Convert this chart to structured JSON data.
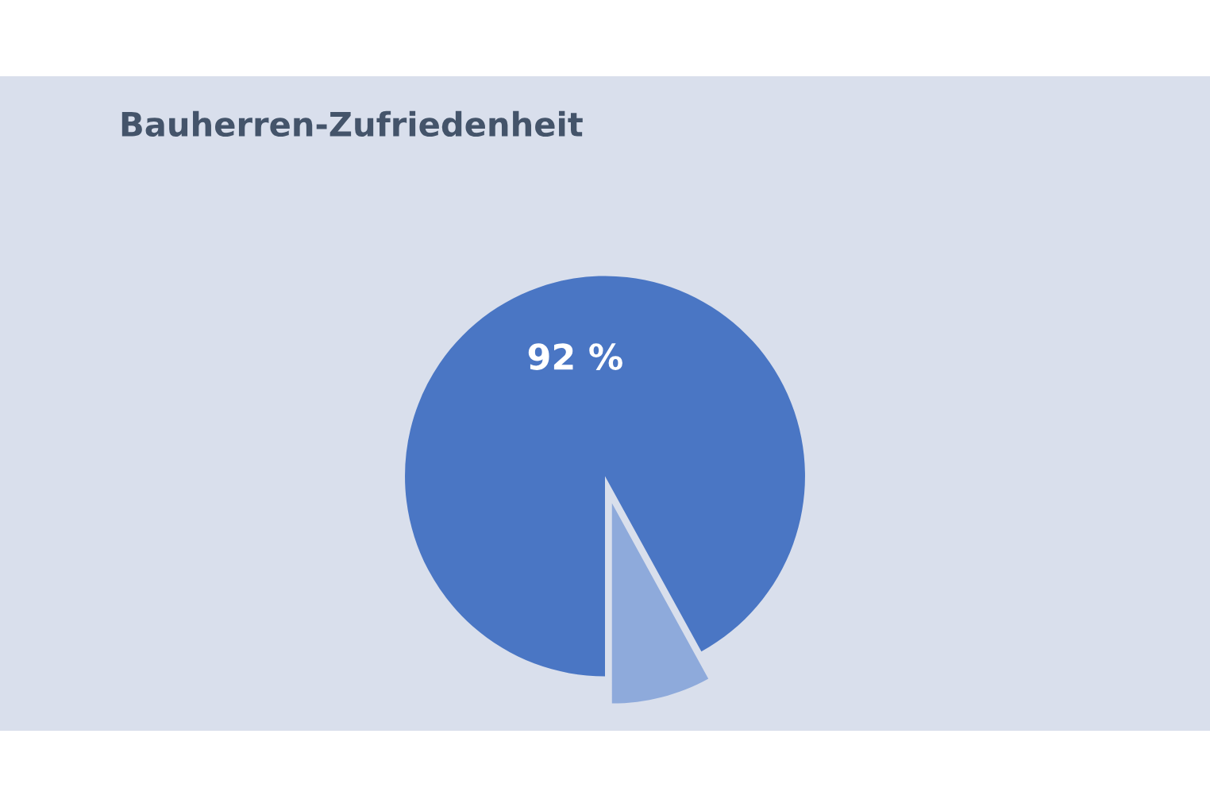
{
  "chart_data": {
    "type": "pie",
    "title": "Bauherren-Zufriedenheit",
    "categories": [
      null,
      null
    ],
    "values": [
      92,
      8
    ],
    "colors": [
      "#4a76c4",
      "#8eaadb"
    ],
    "value_labels": [
      "92 %",
      null
    ]
  }
}
